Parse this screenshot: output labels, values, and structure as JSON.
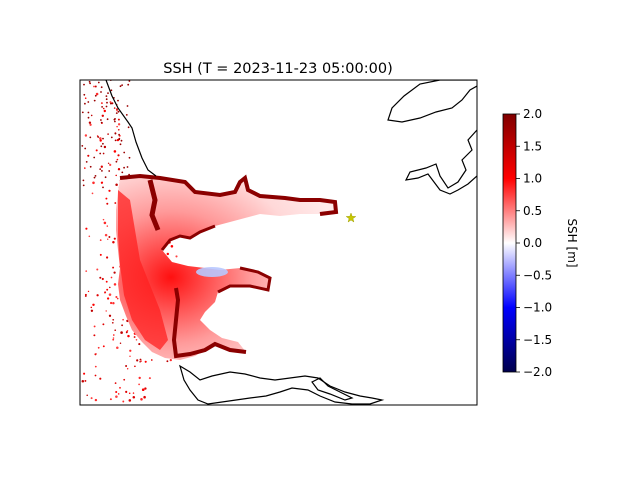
{
  "chart_data": {
    "type": "heatmap",
    "title": "SSH (T = 2023-11-23 05:00:00)",
    "colorbar": {
      "label": "SSH [m]",
      "min": -2.0,
      "max": 2.0,
      "ticks": [
        "2.0",
        "1.5",
        "1.0",
        "0.5",
        "0.0",
        "−0.5",
        "−1.0",
        "−1.5",
        "−2.0"
      ],
      "tick_values": [
        2.0,
        1.5,
        1.0,
        0.5,
        0.0,
        -0.5,
        -1.0,
        -1.5,
        -2.0
      ],
      "colormap": "seismic",
      "colors": [
        "#00004c",
        "#0000ff",
        "#ffffff",
        "#ff0000",
        "#800000"
      ]
    },
    "field_description_values": {
      "offshore_nodes_ssh_range_m": [
        0.8,
        1.6
      ],
      "estuary_ssh_range_m": [
        0.0,
        2.0
      ],
      "local_minimum_ssh_m": -0.4
    },
    "marker": {
      "symbol": "star",
      "color": "#c8c800"
    },
    "coastline_color": "#000000"
  }
}
